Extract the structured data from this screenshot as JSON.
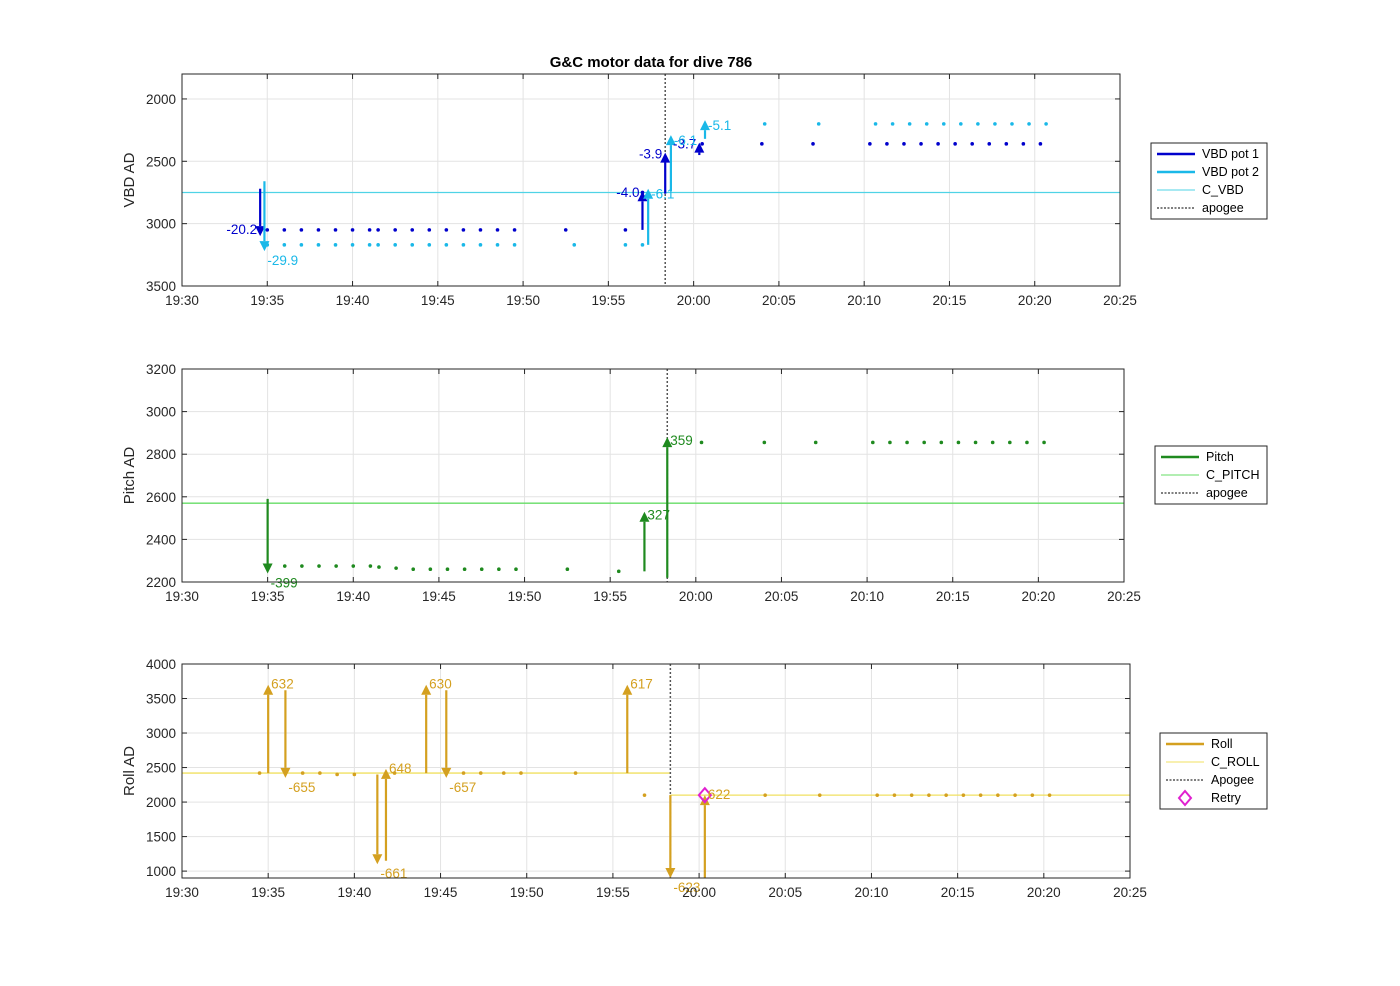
{
  "title": "G&C motor data for dive 786",
  "chart_data": [
    {
      "type": "line",
      "ylabel": "VBD AD",
      "xlabel": "",
      "xlim": [
        "19:30",
        "20:25"
      ],
      "x_ticks": [
        "19:30",
        "19:35",
        "19:40",
        "19:45",
        "19:50",
        "19:55",
        "20:00",
        "20:05",
        "20:10",
        "20:15",
        "20:20",
        "20:25"
      ],
      "ylim": [
        3500,
        1800
      ],
      "y_reversed": true,
      "y_ticks": [
        2000,
        2500,
        3000,
        3500
      ],
      "grid": true,
      "legend_position": "right",
      "reference_lines": [
        {
          "name": "C_VBD",
          "value": 2750,
          "color": "#4fd3e6"
        },
        {
          "name": "apogee",
          "x": "19:58:20",
          "color": "#555555",
          "style": "dotted"
        }
      ],
      "series": [
        {
          "name": "VBD pot 1",
          "color": "#0000cc",
          "points_x": [
            "19:35:00",
            "19:36:00",
            "19:37:00",
            "19:38:00",
            "19:39:00",
            "19:40:00",
            "19:41:00",
            "19:41:30",
            "19:42:30",
            "19:43:30",
            "19:44:30",
            "19:45:30",
            "19:46:30",
            "19:47:30",
            "19:48:30",
            "19:49:30",
            "19:52:30",
            "19:56:00",
            "19:57:00",
            "20:00:30",
            "20:04:00",
            "20:07:00",
            "20:10:20",
            "20:11:20",
            "20:12:20",
            "20:13:20",
            "20:14:20",
            "20:15:20",
            "20:16:20",
            "20:17:20",
            "20:18:20",
            "20:19:20",
            "20:20:20"
          ],
          "points_y": [
            3050,
            3050,
            3050,
            3050,
            3050,
            3050,
            3050,
            3050,
            3050,
            3050,
            3050,
            3050,
            3050,
            3050,
            3050,
            3050,
            3050,
            3050,
            2750,
            2360,
            2360,
            2360,
            2360,
            2360,
            2360,
            2360,
            2360,
            2360,
            2360,
            2360,
            2360,
            2360,
            2360
          ],
          "moves": [
            {
              "x": "19:34:35",
              "from": 2720,
              "to": 3100,
              "label": "-20.2"
            },
            {
              "x": "19:57:00",
              "from": 3050,
              "to": 2740,
              "label": "-4.0"
            },
            {
              "x": "19:58:20",
              "from": 2760,
              "to": 2430,
              "label": "-3.9"
            },
            {
              "x": "20:00:20",
              "from": 2450,
              "to": 2350,
              "label": "-3.7"
            }
          ]
        },
        {
          "name": "VBD pot 2",
          "color": "#1ab8e8",
          "points_x": [
            "19:35:00",
            "19:36:00",
            "19:37:00",
            "19:38:00",
            "19:39:00",
            "19:40:00",
            "19:41:00",
            "19:41:30",
            "19:42:30",
            "19:43:30",
            "19:44:30",
            "19:45:30",
            "19:46:30",
            "19:47:30",
            "19:48:30",
            "19:49:30",
            "19:53:00",
            "19:56:00",
            "19:57:00",
            "20:04:10",
            "20:07:20",
            "20:10:40",
            "20:11:40",
            "20:12:40",
            "20:13:40",
            "20:14:40",
            "20:15:40",
            "20:16:40",
            "20:17:40",
            "20:18:40",
            "20:19:40",
            "20:20:40"
          ],
          "points_y": [
            3170,
            3170,
            3170,
            3170,
            3170,
            3170,
            3170,
            3170,
            3170,
            3170,
            3170,
            3170,
            3170,
            3170,
            3170,
            3170,
            3170,
            3170,
            3170,
            2200,
            2200,
            2200,
            2200,
            2200,
            2200,
            2200,
            2200,
            2200,
            2200,
            2200,
            2200,
            2200
          ],
          "moves": [
            {
              "x": "19:34:50",
              "from": 2660,
              "to": 3220,
              "label": "-29.9"
            },
            {
              "x": "19:57:20",
              "from": 3170,
              "to": 2720,
              "label": "-6.1"
            },
            {
              "x": "19:58:40",
              "from": 2740,
              "to": 2290,
              "label": "-6.1"
            },
            {
              "x": "20:00:40",
              "from": 2320,
              "to": 2170,
              "label": "-5.1"
            }
          ]
        }
      ]
    },
    {
      "type": "line",
      "ylabel": "Pitch AD",
      "xlabel": "",
      "xlim": [
        "19:30",
        "20:25"
      ],
      "x_ticks": [
        "19:30",
        "19:35",
        "19:40",
        "19:45",
        "19:50",
        "19:55",
        "20:00",
        "20:05",
        "20:10",
        "20:15",
        "20:20",
        "20:25"
      ],
      "ylim": [
        2200,
        3200
      ],
      "y_ticks": [
        2200,
        2400,
        2600,
        2800,
        3000,
        3200
      ],
      "grid": true,
      "legend_position": "right",
      "reference_lines": [
        {
          "name": "C_PITCH",
          "value": 2570,
          "color": "#66dd66"
        },
        {
          "name": "apogee",
          "x": "19:58:20",
          "color": "#555555",
          "style": "dotted"
        }
      ],
      "series": [
        {
          "name": "Pitch",
          "color": "#1f8a1f",
          "points_x": [
            "19:36:00",
            "19:37:00",
            "19:38:00",
            "19:39:00",
            "19:40:00",
            "19:41:00",
            "19:41:30",
            "19:42:30",
            "19:43:30",
            "19:44:30",
            "19:45:30",
            "19:46:30",
            "19:47:30",
            "19:48:30",
            "19:49:30",
            "19:52:30",
            "19:55:30",
            "20:00:20",
            "20:04:00",
            "20:07:00",
            "20:10:20",
            "20:11:20",
            "20:12:20",
            "20:13:20",
            "20:14:20",
            "20:15:20",
            "20:16:20",
            "20:17:20",
            "20:18:20",
            "20:19:20",
            "20:20:20"
          ],
          "points_y": [
            2275,
            2275,
            2275,
            2275,
            2275,
            2275,
            2270,
            2265,
            2260,
            2260,
            2260,
            2260,
            2260,
            2260,
            2260,
            2260,
            2250,
            2855,
            2855,
            2855,
            2855,
            2855,
            2855,
            2855,
            2855,
            2855,
            2855,
            2855,
            2855,
            2855,
            2855
          ],
          "moves": [
            {
              "x": "19:35:00",
              "from": 2590,
              "to": 2240,
              "label": "-399"
            },
            {
              "x": "19:57:00",
              "from": 2250,
              "to": 2530,
              "label": "327"
            },
            {
              "x": "19:58:20",
              "from": 2220,
              "to": 2880,
              "label": "359"
            }
          ]
        }
      ]
    },
    {
      "type": "line",
      "ylabel": "Roll AD",
      "xlabel": "",
      "xlim": [
        "19:30",
        "20:25"
      ],
      "x_ticks": [
        "19:30",
        "19:35",
        "19:40",
        "19:45",
        "19:50",
        "19:55",
        "20:00",
        "20:05",
        "20:10",
        "20:15",
        "20:20",
        "20:25"
      ],
      "ylim": [
        900,
        4000
      ],
      "y_ticks": [
        1000,
        1500,
        2000,
        2500,
        3000,
        3500,
        4000
      ],
      "grid": true,
      "legend_position": "right",
      "reference_lines": [
        {
          "name": "C_ROLL",
          "value": 2420,
          "x_to": "19:58:20",
          "color": "#f0e060"
        },
        {
          "name": "C_ROLL",
          "value": 2100,
          "x_from": "19:58:20",
          "color": "#f0e060"
        },
        {
          "name": "Apogee",
          "x": "19:58:20",
          "color": "#555555",
          "style": "dotted"
        }
      ],
      "series": [
        {
          "name": "Roll",
          "color": "#d4a020",
          "points_x": [
            "19:34:30",
            "19:37:00",
            "19:38:00",
            "19:39:00",
            "19:40:00",
            "19:42:20",
            "19:46:20",
            "19:47:20",
            "19:48:40",
            "19:49:40",
            "19:52:50",
            "19:56:50",
            "20:03:50",
            "20:07:00",
            "20:10:20",
            "20:11:20",
            "20:12:20",
            "20:13:20",
            "20:14:20",
            "20:15:20",
            "20:16:20",
            "20:17:20",
            "20:18:20",
            "20:19:20",
            "20:20:20"
          ],
          "points_y": [
            2420,
            2420,
            2420,
            2400,
            2400,
            2420,
            2420,
            2420,
            2420,
            2420,
            2420,
            2100,
            2100,
            2100,
            2100,
            2100,
            2100,
            2100,
            2100,
            2100,
            2100,
            2100,
            2100,
            2100,
            2100
          ],
          "moves": [
            {
              "x": "19:35:00",
              "from": 2420,
              "to": 3700,
              "label": "632"
            },
            {
              "x": "19:36:00",
              "from": 3620,
              "to": 2350,
              "label": "-655"
            },
            {
              "x": "19:41:20",
              "from": 2400,
              "to": 1100,
              "label": "-661"
            },
            {
              "x": "19:41:50",
              "from": 1150,
              "to": 2480,
              "label": "648"
            },
            {
              "x": "19:44:10",
              "from": 2420,
              "to": 3700,
              "label": "630"
            },
            {
              "x": "19:45:20",
              "from": 3620,
              "to": 2350,
              "label": "-657"
            },
            {
              "x": "19:55:50",
              "from": 2420,
              "to": 3700,
              "label": "617"
            },
            {
              "x": "19:58:20",
              "from": 2100,
              "to": 900,
              "label": "-623"
            },
            {
              "x": "20:00:20",
              "from": 900,
              "to": 2100,
              "label": "622"
            }
          ]
        },
        {
          "name": "Retry",
          "color": "#e020d0",
          "marker": "diamond",
          "points_x": [
            "20:00:20"
          ],
          "points_y": [
            2100
          ]
        }
      ]
    }
  ]
}
